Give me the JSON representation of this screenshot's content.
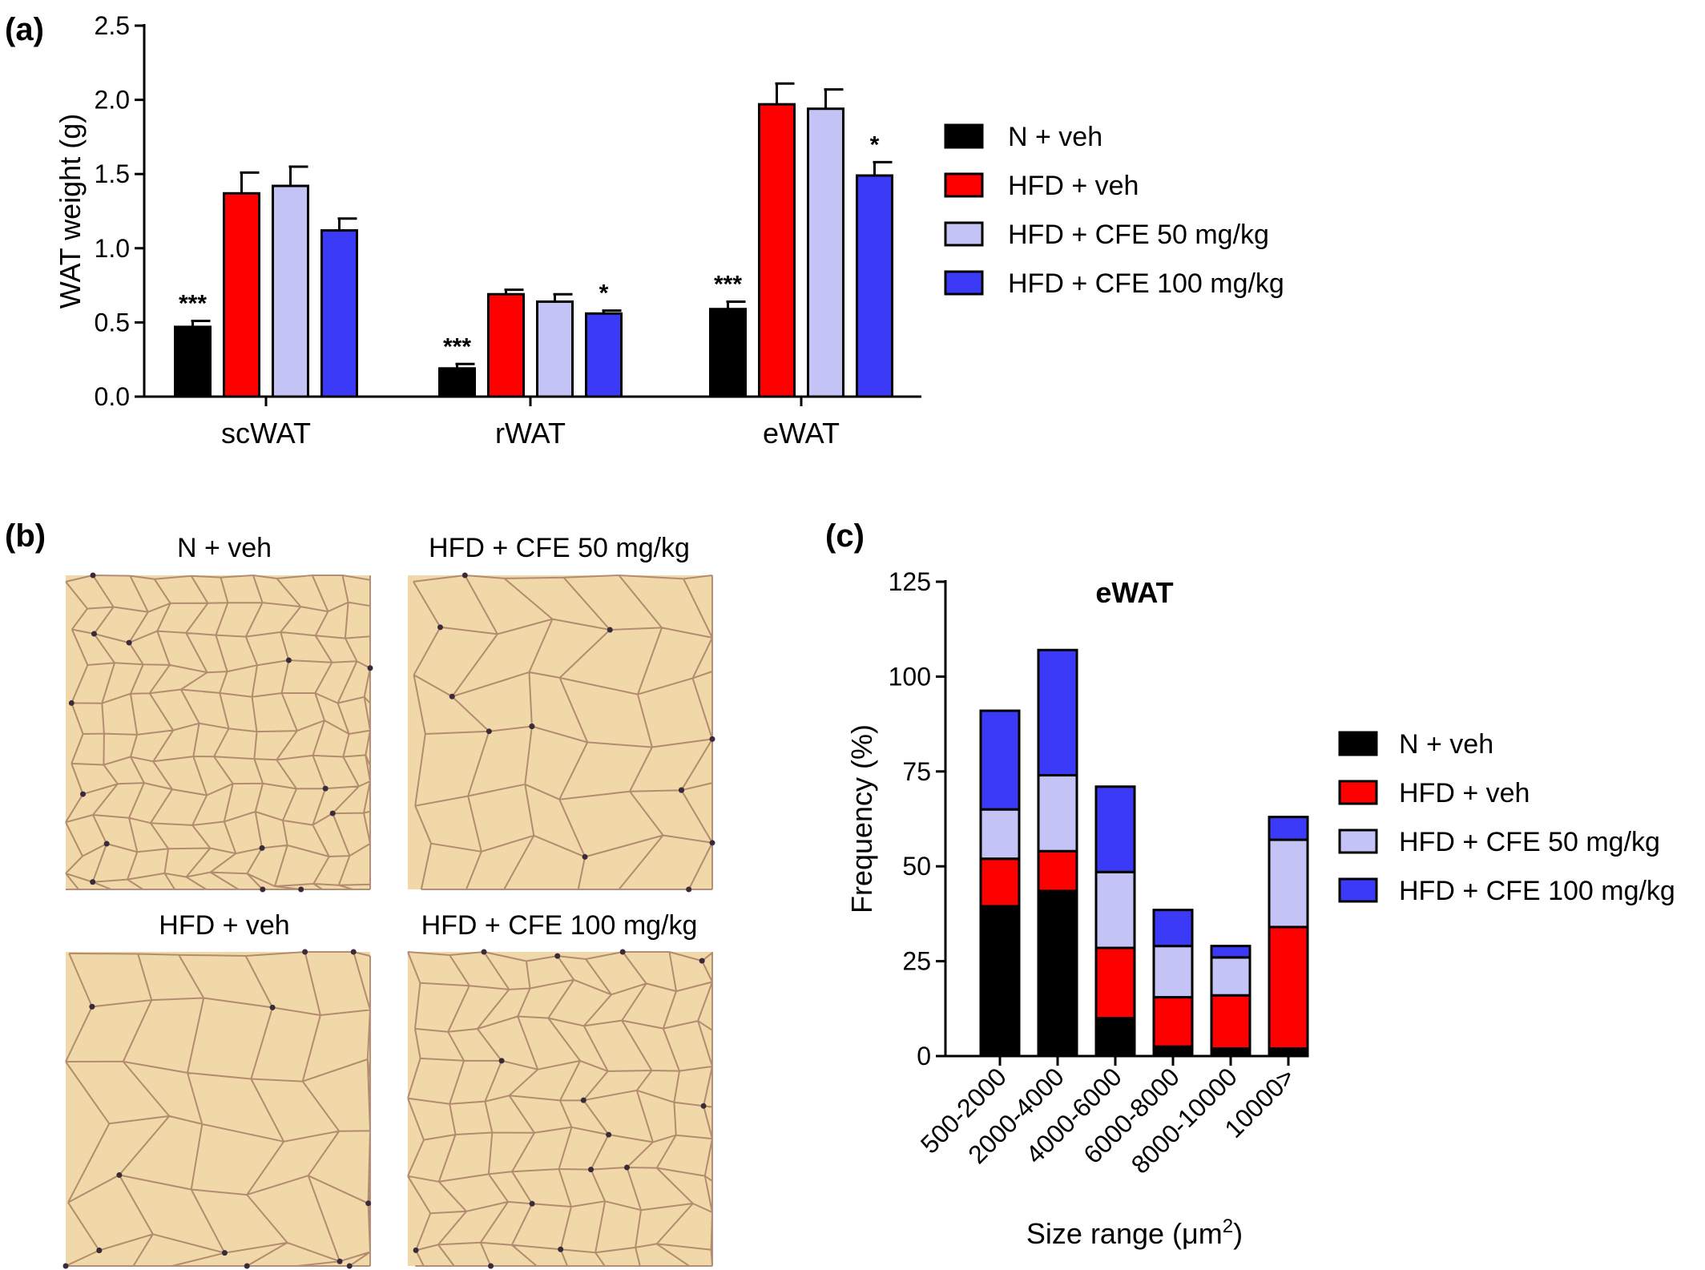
{
  "panel_labels": {
    "a": "(a)",
    "b": "(b)",
    "c": "(c)"
  },
  "colors": {
    "n_veh": "#000000",
    "hfd_veh": "#ff0000",
    "hfd_cfe50": "#c3c3f5",
    "hfd_cfe100": "#3b3bf7",
    "tissue_bg": "#f0d8a8",
    "cell_border": "#a87f66"
  },
  "micrographs": {
    "titles": [
      "N + veh",
      "HFD + CFE 50 mg/kg",
      "HFD + veh",
      "HFD + CFE 100 mg/kg"
    ]
  },
  "chart_data": [
    {
      "type": "bar",
      "panel": "(a)",
      "title": "",
      "xlabel": "",
      "ylabel": "WAT weight  (g)",
      "ylim": [
        0,
        2.5
      ],
      "yticks": [
        "0.0",
        "0.5",
        "1.0",
        "1.5",
        "2.0",
        "2.5"
      ],
      "categories": [
        "scWAT",
        "rWAT",
        "eWAT"
      ],
      "series": [
        {
          "name": "N + veh",
          "values": [
            0.47,
            0.19,
            0.59
          ],
          "errors": [
            0.04,
            0.03,
            0.05
          ],
          "significance": [
            "***",
            "***",
            "***"
          ]
        },
        {
          "name": "HFD + veh",
          "values": [
            1.37,
            0.69,
            1.97
          ],
          "errors": [
            0.14,
            0.03,
            0.14
          ],
          "significance": [
            "",
            "",
            ""
          ]
        },
        {
          "name": "HFD + CFE 50 mg/kg",
          "values": [
            1.42,
            0.64,
            1.94
          ],
          "errors": [
            0.13,
            0.05,
            0.13
          ],
          "significance": [
            "",
            "",
            ""
          ]
        },
        {
          "name": "HFD + CFE 100 mg/kg",
          "values": [
            1.12,
            0.56,
            1.49
          ],
          "errors": [
            0.08,
            0.02,
            0.09
          ],
          "significance": [
            "",
            "*",
            "*"
          ]
        }
      ],
      "legend": "right"
    },
    {
      "type": "bar",
      "stacked": true,
      "panel": "(c)",
      "title": "eWAT",
      "xlabel": "Size range (μm",
      "xlabel_sup": "2",
      "xlabel_end": ")",
      "ylabel": "Frequency (%)",
      "ylim": [
        0,
        125
      ],
      "yticks": [
        "0",
        "25",
        "50",
        "75",
        "100",
        "125"
      ],
      "categories": [
        "500-2000",
        "2000-4000",
        "4000-6000",
        "6000-8000",
        "8000-10000",
        "10000>"
      ],
      "series": [
        {
          "name": "N + veh",
          "values": [
            39.5,
            43.5,
            10,
            2.5,
            2,
            2
          ]
        },
        {
          "name": "HFD + veh",
          "values": [
            12.5,
            10.5,
            18.5,
            13,
            14,
            32
          ]
        },
        {
          "name": "HFD + CFE 50 mg/kg",
          "values": [
            13,
            20,
            20,
            13.5,
            10,
            23
          ]
        },
        {
          "name": "HFD + CFE 100 mg/kg",
          "values": [
            26,
            33,
            22.5,
            9.5,
            3,
            6
          ]
        }
      ],
      "legend": "right"
    }
  ]
}
